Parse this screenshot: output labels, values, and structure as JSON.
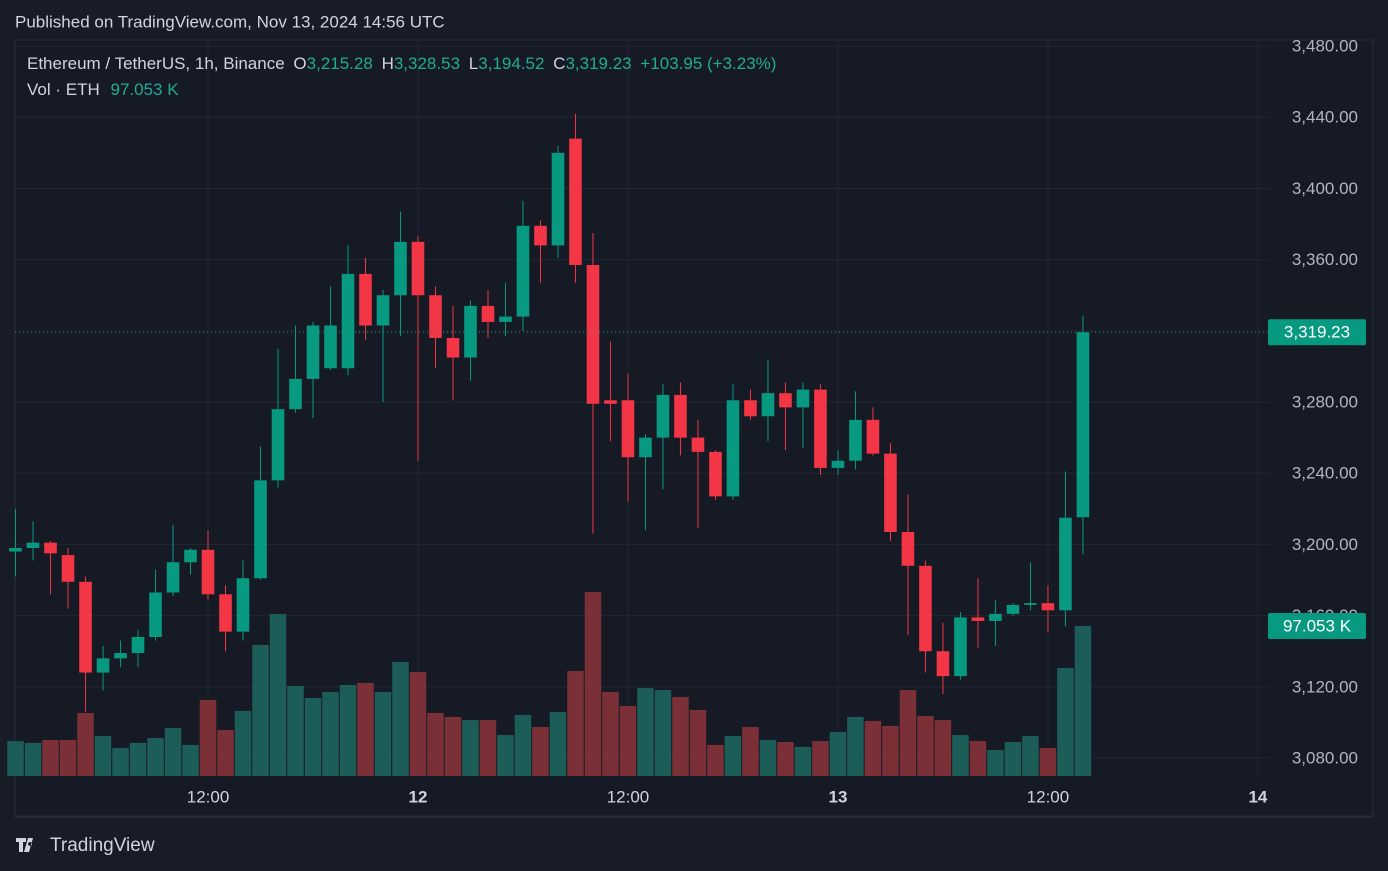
{
  "published": "Published on TradingView.com, Nov 13, 2024 14:56 UTC",
  "legend": {
    "symbol": "Ethereum / TetherUS, 1h, Binance",
    "o_label": "O",
    "o": "3,215.28",
    "h_label": "H",
    "h": "3,328.53",
    "l_label": "L",
    "l": "3,194.52",
    "c_label": "C",
    "c": "3,319.23",
    "change": "+103.95 (+3.23%)",
    "vol_label": "Vol · ETH",
    "vol": "97.053 K"
  },
  "price_tag": "3,319.23",
  "volume_tag": "97.053 K",
  "brand": "TradingView",
  "chart_data": {
    "type": "candlestick",
    "x": [
      1,
      2,
      3,
      4,
      5,
      6,
      7,
      8,
      9,
      10,
      11,
      12,
      13,
      14,
      15,
      16,
      17,
      18,
      19,
      20,
      21,
      22,
      23,
      24,
      25,
      26,
      27,
      28,
      29,
      30,
      31,
      32,
      33,
      34,
      35,
      36,
      37,
      38,
      39,
      40,
      41,
      42,
      43,
      44,
      45,
      46,
      47,
      48,
      49,
      50,
      51,
      52,
      53,
      54,
      55,
      56,
      57,
      58,
      59,
      60,
      61,
      62
    ],
    "open": [
      3196,
      3198,
      3201,
      3194,
      3179,
      3128,
      3136,
      3139,
      3148,
      3173,
      3190,
      3197,
      3172,
      3151,
      3181,
      3236,
      3276,
      3293,
      3299,
      3299,
      3352,
      3323,
      3340,
      3370,
      3340,
      3316,
      3305,
      3334,
      3325,
      3328,
      3379,
      3368,
      3428,
      3357,
      3281,
      3281,
      3249,
      3260,
      3284,
      3260,
      3252,
      3227,
      3281,
      3272,
      3285,
      3277,
      3287,
      3243,
      3247,
      3270,
      3251,
      3207,
      3188,
      3140,
      3126,
      3159,
      3157,
      3161,
      3166,
      3167,
      3163,
      3215.28
    ],
    "high": [
      3220,
      3213,
      3202,
      3198,
      3182,
      3143,
      3146,
      3152,
      3186,
      3211,
      3198,
      3208,
      3177,
      3191,
      3255,
      3310,
      3323,
      3325,
      3345,
      3368,
      3361,
      3343,
      3387,
      3373,
      3345,
      3334,
      3337,
      3343,
      3347,
      3393,
      3382,
      3424,
      3442,
      3375,
      3314,
      3296,
      3262,
      3290,
      3291,
      3270,
      3253,
      3290,
      3287,
      3304,
      3291,
      3291,
      3290,
      3253,
      3286,
      3277,
      3257,
      3228,
      3191,
      3156,
      3162,
      3181,
      3169,
      3167,
      3190,
      3177,
      3241,
      3328.53
    ],
    "low": [
      3182,
      3191,
      3172,
      3164,
      3106,
      3118,
      3131,
      3131,
      3146,
      3171,
      3183,
      3169,
      3140,
      3146,
      3180,
      3232,
      3274,
      3271,
      3298,
      3295,
      3315,
      3280,
      3317,
      3247,
      3299,
      3281,
      3292,
      3316,
      3317,
      3320,
      3347,
      3361,
      3347,
      3206,
      3258,
      3224,
      3208,
      3231,
      3250,
      3209,
      3225,
      3225,
      3270,
      3258,
      3253,
      3254,
      3239,
      3239,
      3242,
      3250,
      3202,
      3149,
      3128,
      3116,
      3124,
      3142,
      3143,
      3160,
      3163,
      3151,
      3154,
      3194.52
    ],
    "close": [
      3198,
      3201,
      3195,
      3179,
      3128,
      3136,
      3139,
      3148,
      3173,
      3190,
      3197,
      3172,
      3151,
      3181,
      3236,
      3276,
      3293,
      3323,
      3323,
      3352,
      3323,
      3340,
      3370,
      3340,
      3316,
      3305,
      3334,
      3325,
      3328,
      3379,
      3368,
      3420,
      3357,
      3279,
      3279,
      3249,
      3260,
      3284,
      3260,
      3252,
      3227,
      3281,
      3272,
      3285,
      3277,
      3287,
      3243,
      3247,
      3270,
      3251,
      3207,
      3188,
      3140,
      3126,
      3159,
      3157,
      3161,
      3166,
      3167,
      3163,
      3215,
      3319.23
    ],
    "volume": [
      22600,
      21400,
      23300,
      23300,
      40800,
      25900,
      18100,
      21400,
      24600,
      31100,
      20100,
      49200,
      29800,
      42100,
      84800,
      104800,
      58200,
      50500,
      54400,
      58900,
      60200,
      54400,
      73800,
      67300,
      40800,
      38200,
      36200,
      36200,
      26500,
      39500,
      31700,
      41400,
      67900,
      119100,
      54400,
      45300,
      56900,
      55600,
      51100,
      42700,
      20100,
      25900,
      31700,
      23300,
      22000,
      18800,
      22600,
      28500,
      38200,
      35600,
      32400,
      55600,
      38800,
      36200,
      26500,
      22600,
      16800,
      22000,
      25900,
      18100,
      69900,
      97053
    ],
    "up_color": "#089981",
    "down_color": "#f23645",
    "up_volume_color": "#1d5d58",
    "down_volume_color": "#7b3037",
    "xlim": [
      0.97,
      72.69
    ],
    "xticks": [
      {
        "value": 12,
        "label": "12:00"
      },
      {
        "value": 24,
        "label": "12"
      },
      {
        "value": 36,
        "label": "12:00"
      },
      {
        "value": 48,
        "label": "13"
      },
      {
        "value": 60,
        "label": "12:00"
      },
      {
        "value": 72,
        "label": "14"
      }
    ],
    "ylim": [
      3069.9,
      3483.4
    ],
    "yticks": [
      {
        "value": 3080,
        "label": "3,080.00"
      },
      {
        "value": 3120,
        "label": "3,120.00"
      },
      {
        "value": 3160,
        "label": "3,160.00"
      },
      {
        "value": 3200,
        "label": "3,200.00"
      },
      {
        "value": 3240,
        "label": "3,240.00"
      },
      {
        "value": 3280,
        "label": "3,280.00"
      },
      {
        "value": 3320,
        "label": "3,320.00"
      },
      {
        "value": 3360,
        "label": "3,360.00"
      },
      {
        "value": 3400,
        "label": "3,400.00"
      },
      {
        "value": 3440,
        "label": "3,440.00"
      },
      {
        "value": 3480,
        "label": "3,480.00"
      }
    ],
    "y2lim": [
      0,
      476200
    ],
    "grid": true
  }
}
